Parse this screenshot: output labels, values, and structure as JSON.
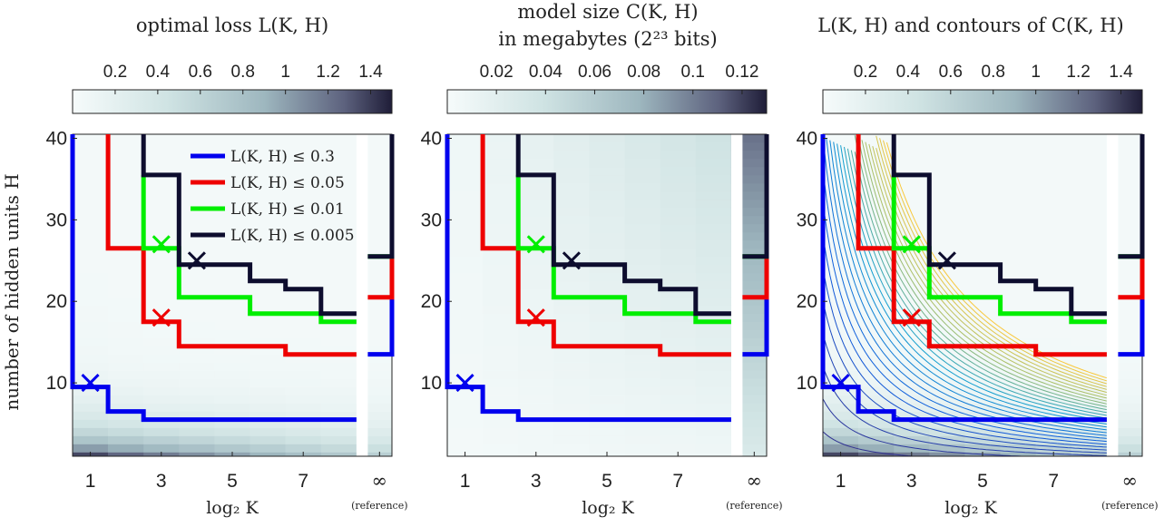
{
  "chart_data": [
    {
      "type": "heatmap",
      "title": "optimal loss L(K, H)",
      "xlabel": "log₂ K",
      "ylabel": "number of hidden units H",
      "x_ticks": [
        "1",
        "3",
        "5",
        "7",
        "∞"
      ],
      "x_ref_label": "(reference)",
      "y_ticks": [
        "10",
        "20",
        "30",
        "40"
      ],
      "xlim": [
        0.5,
        9.5
      ],
      "ylim": [
        1,
        40.5
      ],
      "colorbar": {
        "ticks": [
          "0.2",
          "0.4",
          "0.6",
          "0.8",
          "1",
          "1.2",
          "1.4"
        ],
        "range": [
          0,
          1.5
        ]
      },
      "legend": [
        "L(K, H) ≤ 0.3",
        "L(K, H) ≤ 0.05",
        "L(K, H) ≤ 0.01",
        "L(K, H) ≤ 0.005"
      ],
      "legend_position": "top-right",
      "contours": false
    },
    {
      "type": "heatmap",
      "title_line1": "model size C(K, H)",
      "title_line2": "in megabytes (2²³ bits)",
      "xlabel": "log₂ K",
      "x_ticks": [
        "1",
        "3",
        "5",
        "7",
        "∞"
      ],
      "x_ref_label": "(reference)",
      "y_ticks": [
        "10",
        "20",
        "30",
        "40"
      ],
      "xlim": [
        0.5,
        9.5
      ],
      "ylim": [
        1,
        40.5
      ],
      "colorbar": {
        "ticks": [
          "0.02",
          "0.04",
          "0.06",
          "0.08",
          "0.1",
          "0.12"
        ],
        "range": [
          0,
          0.13
        ]
      },
      "contours": false
    },
    {
      "type": "heatmap",
      "title": "L(K, H) and contours of C(K, H)",
      "xlabel": "log₂ K",
      "x_ticks": [
        "1",
        "3",
        "5",
        "7",
        "∞"
      ],
      "x_ref_label": "(reference)",
      "y_ticks": [
        "10",
        "20",
        "30",
        "40"
      ],
      "xlim": [
        0.5,
        9.5
      ],
      "ylim": [
        1,
        40.5
      ],
      "colorbar": {
        "ticks": [
          "0.2",
          "0.4",
          "0.6",
          "0.8",
          "1",
          "1.2",
          "1.4"
        ],
        "range": [
          0,
          1.5
        ]
      },
      "contours": true
    }
  ],
  "frontiers": [
    {
      "label": "L(K, H) ≤ 0.3",
      "color": "#0000ee",
      "steps": [
        [
          0.5,
          40.5
        ],
        [
          0.5,
          9.5
        ],
        [
          1.5,
          9.5
        ],
        [
          1.5,
          6.5
        ],
        [
          2.5,
          6.5
        ],
        [
          2.5,
          5.5
        ],
        [
          8.5,
          5.5
        ]
      ],
      "ref_y": 13.5,
      "marker": [
        1,
        10
      ]
    },
    {
      "label": "L(K, H) ≤ 0.05",
      "color": "#ee0000",
      "steps": [
        [
          1.5,
          40.5
        ],
        [
          1.5,
          26.5
        ],
        [
          2.5,
          26.5
        ],
        [
          2.5,
          17.5
        ],
        [
          3.5,
          17.5
        ],
        [
          3.5,
          14.5
        ],
        [
          6.5,
          14.5
        ],
        [
          6.5,
          13.5
        ],
        [
          8.5,
          13.5
        ]
      ],
      "ref_y": 20.5,
      "marker": [
        3,
        18
      ]
    },
    {
      "label": "L(K, H) ≤ 0.01",
      "color": "#00ee00",
      "steps": [
        [
          2.5,
          35.5
        ],
        [
          2.5,
          26.5
        ],
        [
          3.5,
          26.5
        ],
        [
          3.5,
          20.5
        ],
        [
          5.5,
          20.5
        ],
        [
          5.5,
          18.5
        ],
        [
          7.5,
          18.5
        ],
        [
          7.5,
          17.5
        ],
        [
          8.5,
          17.5
        ]
      ],
      "ref_y": 25.5,
      "marker": [
        3,
        27
      ]
    },
    {
      "label": "L(K, H) ≤ 0.005",
      "color": "#0d0d2e",
      "steps": [
        [
          2.5,
          40.5
        ],
        [
          2.5,
          35.5
        ],
        [
          3.5,
          35.5
        ],
        [
          3.5,
          24.5
        ],
        [
          5.5,
          24.5
        ],
        [
          5.5,
          22.5
        ],
        [
          6.5,
          22.5
        ],
        [
          6.5,
          21.5
        ],
        [
          7.5,
          21.5
        ],
        [
          7.5,
          18.5
        ],
        [
          8.5,
          18.5
        ]
      ],
      "ref_y": 25.5,
      "marker": [
        4,
        25
      ]
    }
  ],
  "colors": {
    "map_low": "#f6fbfb",
    "map_mid": "#a9c9ca",
    "map_high": "#26243f"
  }
}
